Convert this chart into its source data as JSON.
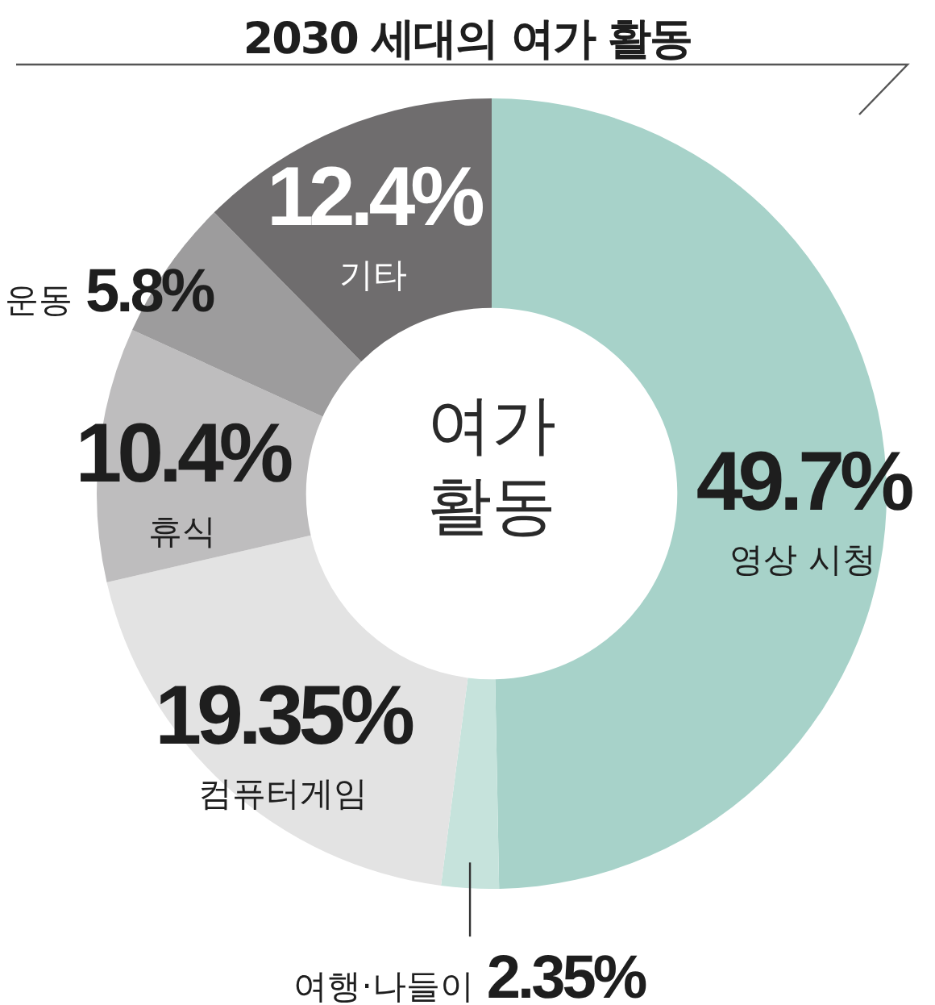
{
  "chart_data": {
    "type": "donut",
    "title": "2030 세대의 여가 활동",
    "categories": [
      "영상 시청",
      "여행·나들이",
      "컴퓨터게임",
      "휴식",
      "운동",
      "기타"
    ],
    "values": [
      49.7,
      2.35,
      19.35,
      10.4,
      5.8,
      12.4
    ],
    "colors": [
      "#a7d2c9",
      "#c6e3dc",
      "#e3e3e3",
      "#bebdbe",
      "#9d9c9d",
      "#6f6d6e"
    ],
    "value_labels": [
      "49.7%",
      "2.35%",
      "19.35%",
      "10.4%",
      "5.8%",
      "12.4%"
    ],
    "annotations": [
      "여가 활동"
    ]
  }
}
